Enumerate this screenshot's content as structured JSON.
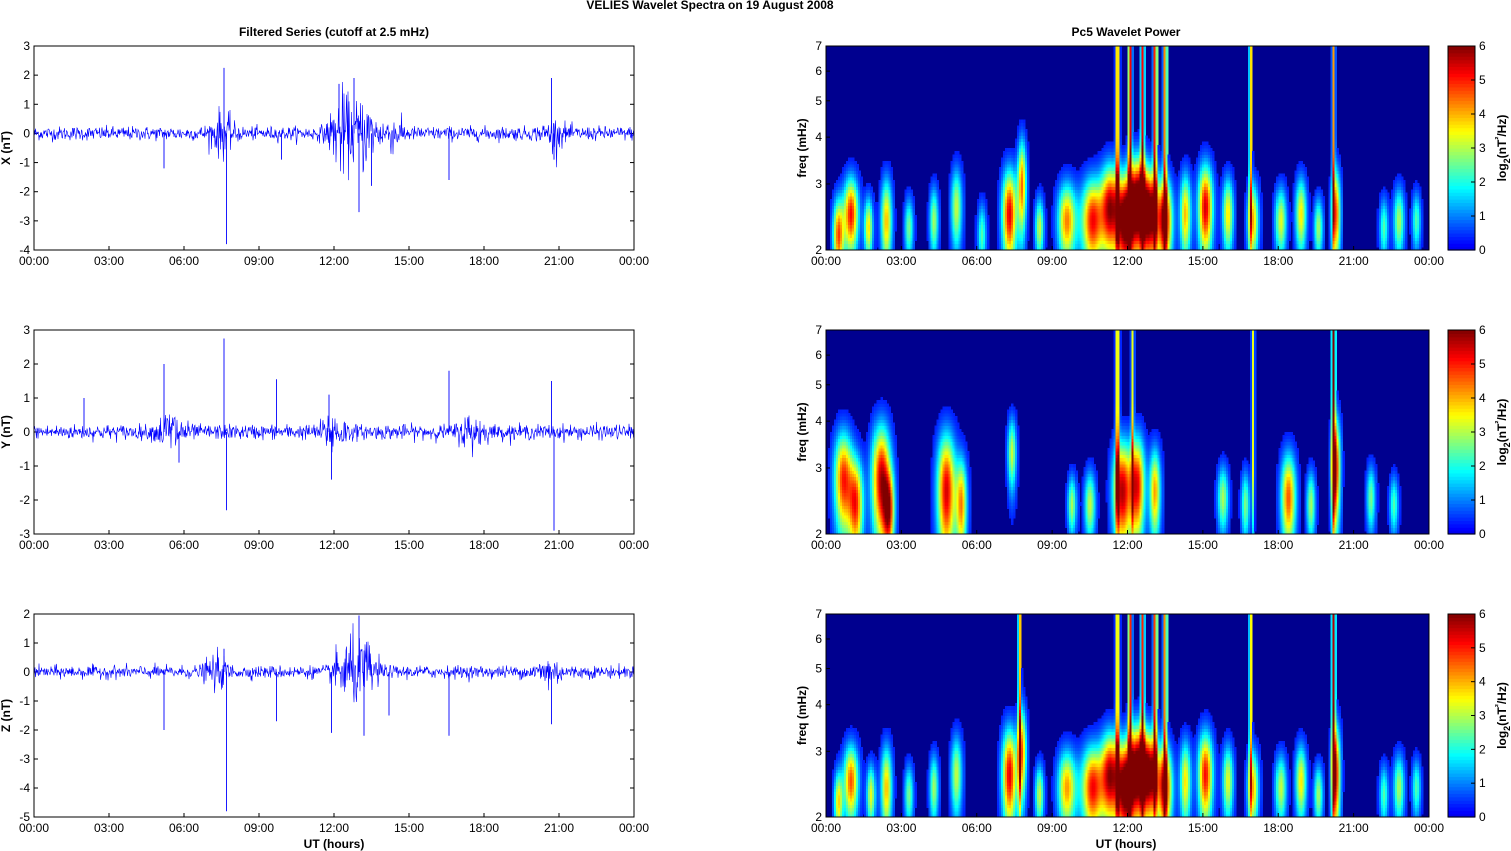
{
  "figure": {
    "title": "VELIES Wavelet Spectra on 19 August    2008",
    "left_title": "Filtered Series (cutoff at 2.5 mHz)",
    "right_title": "Pc5 Wavelet Power",
    "x_label": "UT (hours)",
    "freq_label": "freq (mHz)",
    "colorbar_label": "log2(nT²/Hz)"
  },
  "colors": {
    "trace": "#0000ff",
    "background": "#00008f",
    "colormap": "jet"
  },
  "chart_data": [
    {
      "type": "line",
      "panel": "X",
      "ylabel": "X (nT)",
      "xlim": [
        0,
        24
      ],
      "ylim": [
        -4,
        3
      ],
      "x_ticks": [
        "00:00",
        "03:00",
        "06:00",
        "09:00",
        "12:00",
        "15:00",
        "18:00",
        "21:00",
        "00:00"
      ],
      "y_ticks": [
        3,
        2,
        1,
        0,
        -1,
        -2,
        -3,
        -4
      ],
      "noise_level": 0.13,
      "bursts": [
        [
          7.5,
          0.35
        ],
        [
          12.3,
          0.7
        ],
        [
          13.2,
          0.6
        ],
        [
          14.3,
          0.25
        ],
        [
          20.8,
          0.2
        ]
      ],
      "spikes": [
        [
          5.2,
          -1.2
        ],
        [
          7.6,
          2.25
        ],
        [
          7.7,
          -3.8
        ],
        [
          9.9,
          -0.9
        ],
        [
          12.2,
          1.7
        ],
        [
          12.8,
          1.9
        ],
        [
          13.0,
          -2.7
        ],
        [
          13.5,
          -1.8
        ],
        [
          16.6,
          -1.6
        ],
        [
          20.7,
          1.9
        ],
        [
          20.8,
          -0.9
        ]
      ]
    },
    {
      "type": "line",
      "panel": "Y",
      "ylabel": "Y (nT)",
      "xlim": [
        0,
        24
      ],
      "ylim": [
        -3,
        3
      ],
      "x_ticks": [
        "00:00",
        "03:00",
        "06:00",
        "09:00",
        "12:00",
        "15:00",
        "18:00",
        "21:00",
        "00:00"
      ],
      "y_ticks": [
        3,
        2,
        1,
        0,
        -1,
        -2,
        -3
      ],
      "noise_level": 0.12,
      "bursts": [
        [
          5.5,
          0.35
        ],
        [
          12.0,
          0.3
        ],
        [
          17.5,
          0.25
        ]
      ],
      "spikes": [
        [
          2.0,
          1.0
        ],
        [
          5.2,
          2.0
        ],
        [
          5.8,
          -0.9
        ],
        [
          7.6,
          2.75
        ],
        [
          7.7,
          -2.3
        ],
        [
          9.7,
          1.55
        ],
        [
          11.8,
          1.1
        ],
        [
          11.9,
          -1.4
        ],
        [
          16.6,
          1.8
        ],
        [
          20.7,
          1.5
        ],
        [
          20.8,
          -2.9
        ]
      ]
    },
    {
      "type": "line",
      "panel": "Z",
      "ylabel": "Z (nT)",
      "xlim": [
        0,
        24
      ],
      "ylim": [
        -5,
        2
      ],
      "x_ticks": [
        "00:00",
        "03:00",
        "06:00",
        "09:00",
        "12:00",
        "15:00",
        "18:00",
        "21:00",
        "00:00"
      ],
      "y_ticks": [
        2,
        1,
        0,
        -1,
        -2,
        -3,
        -4,
        -5
      ],
      "noise_level": 0.12,
      "bursts": [
        [
          7.3,
          0.25
        ],
        [
          12.5,
          0.6
        ],
        [
          13.3,
          0.5
        ],
        [
          20.6,
          0.25
        ]
      ],
      "spikes": [
        [
          5.2,
          -2.0
        ],
        [
          7.6,
          0.8
        ],
        [
          7.7,
          -4.8
        ],
        [
          9.7,
          -1.7
        ],
        [
          11.9,
          -2.1
        ],
        [
          13.0,
          1.95
        ],
        [
          13.2,
          -2.2
        ],
        [
          14.2,
          -1.5
        ],
        [
          16.6,
          -2.2
        ],
        [
          20.7,
          -1.8
        ]
      ]
    },
    {
      "type": "heatmap",
      "panel": "X",
      "ylabel": "freq (mHz)",
      "xlim": [
        0,
        24
      ],
      "ylim": [
        2,
        7
      ],
      "yscale": "log",
      "x_ticks": [
        "00:00",
        "03:00",
        "06:00",
        "09:00",
        "12:00",
        "15:00",
        "18:00",
        "21:00",
        "00:00"
      ],
      "y_ticks": [
        2,
        3,
        4,
        5,
        6,
        7
      ],
      "zlim": [
        0,
        6
      ],
      "colorbar_ticks": [
        0,
        1,
        2,
        3,
        4,
        5,
        6
      ],
      "blobs": [
        [
          0.5,
          2.2,
          0.15,
          0.35,
          4.5
        ],
        [
          1.0,
          2.5,
          0.2,
          0.4,
          5.0
        ],
        [
          1.7,
          2.3,
          0.12,
          0.3,
          3.5
        ],
        [
          2.4,
          2.4,
          0.15,
          0.45,
          3.8
        ],
        [
          3.3,
          2.3,
          0.12,
          0.3,
          2.5
        ],
        [
          4.3,
          2.4,
          0.12,
          0.35,
          2.8
        ],
        [
          5.2,
          2.6,
          0.15,
          0.45,
          3.0
        ],
        [
          6.2,
          2.2,
          0.12,
          0.3,
          2.2
        ],
        [
          7.3,
          2.5,
          0.2,
          0.5,
          5.2
        ],
        [
          7.8,
          3.0,
          0.12,
          0.6,
          4.2
        ],
        [
          8.5,
          2.3,
          0.12,
          0.3,
          3.0
        ],
        [
          9.6,
          2.4,
          0.25,
          0.4,
          4.2
        ],
        [
          10.6,
          2.4,
          0.3,
          0.45,
          5.0
        ],
        [
          11.3,
          2.6,
          0.25,
          0.5,
          5.3
        ],
        [
          11.9,
          2.4,
          0.25,
          0.5,
          6.0
        ],
        [
          12.4,
          2.7,
          0.25,
          0.55,
          6.0
        ],
        [
          12.9,
          2.5,
          0.25,
          0.5,
          6.0
        ],
        [
          13.5,
          2.4,
          0.2,
          0.45,
          5.5
        ],
        [
          14.3,
          2.5,
          0.15,
          0.45,
          3.8
        ],
        [
          15.1,
          2.6,
          0.2,
          0.5,
          5.3
        ],
        [
          16.0,
          2.5,
          0.15,
          0.4,
          3.5
        ],
        [
          17.0,
          2.4,
          0.15,
          0.4,
          3.8
        ],
        [
          18.1,
          2.4,
          0.15,
          0.35,
          3.2
        ],
        [
          18.9,
          2.5,
          0.15,
          0.4,
          3.5
        ],
        [
          19.6,
          2.3,
          0.12,
          0.3,
          2.8
        ],
        [
          20.3,
          2.5,
          0.12,
          0.5,
          4.5
        ],
        [
          22.2,
          2.3,
          0.12,
          0.3,
          2.2
        ],
        [
          22.8,
          2.4,
          0.15,
          0.35,
          2.8
        ],
        [
          23.5,
          2.4,
          0.12,
          0.3,
          2.2
        ]
      ],
      "streaks": [
        [
          11.6,
          0.05,
          4.8
        ],
        [
          12.1,
          0.05,
          5.5
        ],
        [
          12.6,
          0.05,
          5.0
        ],
        [
          13.1,
          0.05,
          5.2
        ],
        [
          13.5,
          0.05,
          4.5
        ],
        [
          16.9,
          0.04,
          4.0
        ],
        [
          20.2,
          0.04,
          4.0
        ]
      ]
    },
    {
      "type": "heatmap",
      "panel": "Y",
      "ylabel": "freq (mHz)",
      "xlim": [
        0,
        24
      ],
      "ylim": [
        2,
        7
      ],
      "yscale": "log",
      "x_ticks": [
        "00:00",
        "03:00",
        "06:00",
        "09:00",
        "12:00",
        "15:00",
        "18:00",
        "21:00",
        "00:00"
      ],
      "y_ticks": [
        2,
        3,
        4,
        5,
        6,
        7
      ],
      "zlim": [
        0,
        6
      ],
      "colorbar_ticks": [
        0,
        1,
        2,
        3,
        4,
        5,
        6
      ],
      "blobs": [
        [
          0.7,
          2.8,
          0.25,
          0.6,
          4.8
        ],
        [
          1.2,
          2.4,
          0.2,
          0.5,
          4.5
        ],
        [
          2.2,
          2.8,
          0.25,
          0.7,
          5.5
        ],
        [
          2.5,
          2.3,
          0.15,
          0.4,
          4.2
        ],
        [
          4.8,
          2.6,
          0.25,
          0.7,
          5.3
        ],
        [
          5.4,
          2.4,
          0.15,
          0.5,
          4.0
        ],
        [
          7.4,
          3.3,
          0.12,
          0.5,
          3.0
        ],
        [
          9.8,
          2.4,
          0.12,
          0.3,
          2.8
        ],
        [
          10.5,
          2.4,
          0.15,
          0.35,
          3.0
        ],
        [
          11.8,
          2.6,
          0.25,
          0.6,
          5.5
        ],
        [
          12.4,
          2.7,
          0.2,
          0.6,
          5.0
        ],
        [
          13.1,
          2.6,
          0.15,
          0.5,
          4.0
        ],
        [
          15.8,
          2.5,
          0.15,
          0.35,
          2.8
        ],
        [
          16.7,
          2.4,
          0.12,
          0.35,
          2.5
        ],
        [
          18.4,
          2.5,
          0.2,
          0.5,
          4.5
        ],
        [
          19.3,
          2.4,
          0.12,
          0.35,
          2.8
        ],
        [
          20.3,
          3.0,
          0.12,
          0.7,
          5.0
        ],
        [
          21.7,
          2.5,
          0.12,
          0.35,
          2.5
        ],
        [
          22.6,
          2.4,
          0.12,
          0.3,
          2.2
        ]
      ],
      "streaks": [
        [
          11.6,
          0.05,
          4.5
        ],
        [
          12.2,
          0.04,
          3.2
        ],
        [
          17.0,
          0.04,
          3.2
        ],
        [
          20.2,
          0.05,
          5.8
        ]
      ]
    },
    {
      "type": "heatmap",
      "panel": "Z",
      "ylabel": "freq (mHz)",
      "xlim": [
        0,
        24
      ],
      "ylim": [
        2,
        7
      ],
      "yscale": "log",
      "x_ticks": [
        "00:00",
        "03:00",
        "06:00",
        "09:00",
        "12:00",
        "15:00",
        "18:00",
        "21:00",
        "00:00"
      ],
      "y_ticks": [
        2,
        3,
        4,
        5,
        6,
        7
      ],
      "zlim": [
        0,
        6
      ],
      "colorbar_ticks": [
        0,
        1,
        2,
        3,
        4,
        5,
        6
      ],
      "blobs": [
        [
          0.5,
          2.2,
          0.12,
          0.3,
          3.5
        ],
        [
          1.0,
          2.5,
          0.2,
          0.4,
          4.5
        ],
        [
          1.8,
          2.3,
          0.12,
          0.3,
          3.2
        ],
        [
          2.4,
          2.4,
          0.15,
          0.45,
          3.8
        ],
        [
          3.3,
          2.3,
          0.12,
          0.3,
          2.5
        ],
        [
          4.3,
          2.4,
          0.12,
          0.35,
          2.8
        ],
        [
          5.2,
          2.6,
          0.15,
          0.45,
          3.0
        ],
        [
          7.3,
          2.6,
          0.2,
          0.55,
          5.2
        ],
        [
          7.8,
          3.0,
          0.12,
          0.6,
          4.2
        ],
        [
          8.5,
          2.3,
          0.12,
          0.3,
          3.0
        ],
        [
          9.6,
          2.4,
          0.25,
          0.4,
          4.0
        ],
        [
          10.6,
          2.4,
          0.3,
          0.45,
          5.0
        ],
        [
          11.3,
          2.6,
          0.25,
          0.5,
          5.3
        ],
        [
          11.9,
          2.4,
          0.25,
          0.5,
          6.0
        ],
        [
          12.4,
          2.7,
          0.25,
          0.55,
          5.8
        ],
        [
          12.9,
          2.6,
          0.25,
          0.5,
          5.8
        ],
        [
          13.5,
          2.4,
          0.2,
          0.45,
          5.2
        ],
        [
          14.3,
          2.5,
          0.15,
          0.45,
          3.5
        ],
        [
          15.1,
          2.6,
          0.2,
          0.5,
          5.0
        ],
        [
          16.0,
          2.5,
          0.15,
          0.4,
          3.2
        ],
        [
          17.0,
          2.4,
          0.15,
          0.4,
          3.8
        ],
        [
          18.1,
          2.4,
          0.15,
          0.35,
          3.0
        ],
        [
          18.9,
          2.5,
          0.15,
          0.4,
          3.5
        ],
        [
          19.6,
          2.3,
          0.12,
          0.3,
          2.8
        ],
        [
          20.3,
          2.6,
          0.12,
          0.6,
          5.0
        ],
        [
          22.2,
          2.3,
          0.12,
          0.3,
          2.2
        ],
        [
          22.8,
          2.4,
          0.15,
          0.35,
          2.8
        ],
        [
          23.5,
          2.4,
          0.12,
          0.3,
          2.2
        ]
      ],
      "streaks": [
        [
          7.7,
          0.04,
          4.2
        ],
        [
          11.6,
          0.05,
          4.5
        ],
        [
          12.1,
          0.05,
          5.2
        ],
        [
          12.6,
          0.05,
          4.8
        ],
        [
          13.1,
          0.05,
          5.0
        ],
        [
          13.5,
          0.05,
          4.5
        ],
        [
          16.9,
          0.04,
          3.8
        ],
        [
          20.2,
          0.05,
          5.5
        ]
      ]
    }
  ]
}
